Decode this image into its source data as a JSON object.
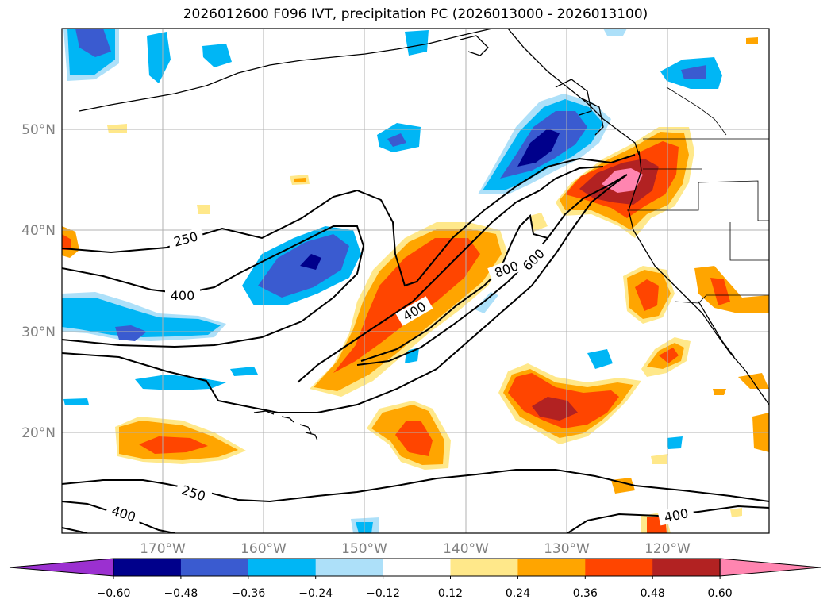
{
  "title": "2026012600 F096 IVT, precipitation PC (2026013000 - 2026013100)",
  "lon_labels": [
    "170°W",
    "160°W",
    "150°W",
    "140°W",
    "130°W",
    "120°W"
  ],
  "lat_labels": [
    "50°N",
    "40°N",
    "30°N",
    "20°N"
  ],
  "ivt_contour_labels": [
    {
      "text": "250",
      "value": 250
    },
    {
      "text": "400",
      "value": 400
    },
    {
      "text": "400",
      "value": 400
    },
    {
      "text": "800",
      "value": 800
    },
    {
      "text": "600",
      "value": 600
    },
    {
      "text": "250",
      "value": 250
    },
    {
      "text": "400",
      "value": 400
    },
    {
      "text": "400",
      "value": 400
    }
  ],
  "colorbar": {
    "tick_labels": [
      "−0.60",
      "−0.48",
      "−0.36",
      "−0.24",
      "−0.12",
      "0.12",
      "0.24",
      "0.36",
      "0.48",
      "0.60"
    ],
    "colors": [
      "#9b30d0",
      "#00008b",
      "#3a5bd0",
      "#00b6f5",
      "#ade0f9",
      "#ffffff",
      "#ffe88a",
      "#ffa500",
      "#ff4500",
      "#b22222",
      "#ff85b0"
    ]
  },
  "colors": {
    "pos_low": "#ffe88a",
    "pos_mid": "#ffa500",
    "pos_high": "#ff4500",
    "pos_higher": "#b22222",
    "pos_max": "#ff85b0",
    "neg_low": "#ade0f9",
    "neg_mid": "#00b6f5",
    "neg_high": "#3a5bd0",
    "neg_max": "#00008b",
    "grid": "#b0b0b0",
    "coast": "#000000"
  }
}
